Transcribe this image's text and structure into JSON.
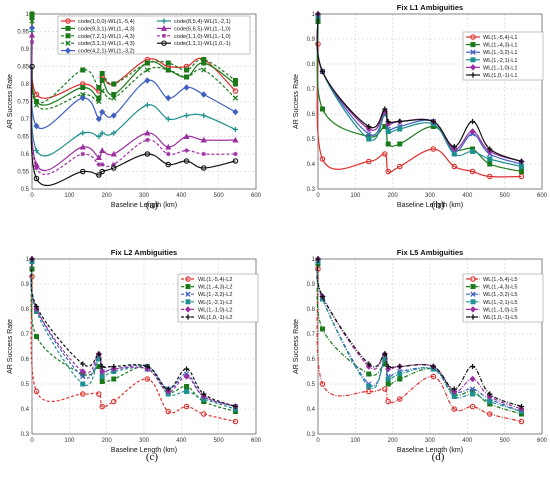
{
  "chart_data": [
    {
      "panel": "(a)",
      "type": "line",
      "title": "",
      "xlabel": "Baseline Length (km)",
      "ylabel": "AR Success Rate",
      "xlim": [
        0,
        600
      ],
      "ylim": [
        0.5,
        1.0
      ],
      "xticks": [
        "0",
        "100",
        "200",
        "300",
        "400",
        "500",
        "600"
      ],
      "yticks": [
        "0.5",
        "0.55",
        "0.6",
        "0.65",
        "0.7",
        "0.75",
        "0.8",
        "0.85",
        "0.9",
        "0.95",
        "1"
      ],
      "grid": true,
      "legend_position": "top",
      "legend_columns": 2,
      "x": [
        0,
        12,
        136,
        179,
        188,
        219,
        309,
        365,
        414,
        460,
        545
      ],
      "series": [
        {
          "name": "code(1,0,0)-WL(1,-5,4)",
          "color": "#e03030",
          "dash": "solid",
          "marker": "circle",
          "values": [
            1.0,
            0.77,
            0.8,
            0.78,
            0.82,
            0.8,
            0.87,
            0.85,
            0.85,
            0.87,
            0.78
          ]
        },
        {
          "name": "code(9,3,1)-WL(1,-4,3)",
          "color": "#1a7a1a",
          "dash": "solid",
          "marker": "square",
          "values": [
            1.0,
            0.75,
            0.79,
            0.76,
            0.81,
            0.77,
            0.86,
            0.84,
            0.82,
            0.86,
            0.8
          ]
        },
        {
          "name": "code(7,2,1)-WL(1,-4,3)",
          "color": "#1a7a1a",
          "dash": "dashed",
          "marker": "square",
          "values": [
            0.99,
            0.75,
            0.84,
            0.79,
            0.83,
            0.8,
            0.86,
            0.86,
            0.84,
            0.87,
            0.81
          ]
        },
        {
          "name": "code(3,1,1)-WL(1,-4,3)",
          "color": "#1a7a1a",
          "dash": "dashed",
          "marker": "cross",
          "values": [
            0.98,
            0.74,
            0.77,
            0.75,
            0.78,
            0.76,
            0.84,
            0.84,
            0.82,
            0.84,
            0.76
          ]
        },
        {
          "name": "code(4,2,1)-WL(1,-3,2)",
          "color": "#4060c0",
          "dash": "solid",
          "marker": "diamond",
          "values": [
            0.96,
            0.68,
            0.76,
            0.7,
            0.72,
            0.71,
            0.81,
            0.76,
            0.79,
            0.77,
            0.72
          ]
        },
        {
          "name": "code(8,5,4)-WL(1,-2,1)",
          "color": "#1f9090",
          "dash": "solid",
          "marker": "plus",
          "values": [
            0.95,
            0.61,
            0.66,
            0.65,
            0.66,
            0.66,
            0.74,
            0.7,
            0.71,
            0.71,
            0.67
          ]
        },
        {
          "name": "code(6,6,5)-WL(1,-1,0)",
          "color": "#9c2fa0",
          "dash": "solid",
          "marker": "triangle",
          "values": [
            0.94,
            0.57,
            0.62,
            0.59,
            0.61,
            0.6,
            0.66,
            0.62,
            0.65,
            0.64,
            0.64
          ]
        },
        {
          "name": "code(1,1,0)-WL(1,-1,0)",
          "color": "#9c2fa0",
          "dash": "dashed",
          "marker": "star",
          "values": [
            0.92,
            0.56,
            0.6,
            0.57,
            0.57,
            0.57,
            0.64,
            0.6,
            0.61,
            0.6,
            0.6
          ]
        },
        {
          "name": "code(1,1,1)-WL(1,0,-1)",
          "color": "#111111",
          "dash": "solid",
          "marker": "circle",
          "values": [
            0.85,
            0.53,
            0.55,
            0.54,
            0.55,
            0.56,
            0.6,
            0.57,
            0.58,
            0.56,
            0.58
          ]
        }
      ]
    },
    {
      "panel": "(b)",
      "type": "line",
      "title": "Fix L1 Ambiguities",
      "xlabel": "Baseline Length (km)",
      "ylabel": "AR Success Rate",
      "xlim": [
        0,
        600
      ],
      "ylim": [
        0.3,
        1.0
      ],
      "xticks": [
        "0",
        "100",
        "200",
        "300",
        "400",
        "500",
        "600"
      ],
      "yticks": [
        "0.3",
        "0.4",
        "0.5",
        "0.6",
        "0.7",
        "0.8",
        "0.9",
        "1"
      ],
      "grid": true,
      "legend_position": "top-right",
      "x": [
        0,
        12,
        136,
        179,
        188,
        219,
        309,
        365,
        414,
        460,
        545
      ],
      "series": [
        {
          "name": "WL(1,-5,4)-L1",
          "color": "#e03030",
          "dash": "solid",
          "marker": "circle",
          "values": [
            0.88,
            0.42,
            0.41,
            0.44,
            0.37,
            0.39,
            0.46,
            0.39,
            0.37,
            0.35,
            0.35
          ]
        },
        {
          "name": "WL(1,-4,3)-L1",
          "color": "#1a7a1a",
          "dash": "solid",
          "marker": "square",
          "values": [
            0.97,
            0.62,
            0.51,
            0.55,
            0.48,
            0.48,
            0.55,
            0.46,
            0.46,
            0.4,
            0.37
          ]
        },
        {
          "name": "WL(1,-3,2)-L1",
          "color": "#4060c0",
          "dash": "solid",
          "marker": "cross",
          "values": [
            0.99,
            0.77,
            0.52,
            0.6,
            0.54,
            0.55,
            0.57,
            0.45,
            0.52,
            0.44,
            0.4
          ]
        },
        {
          "name": "WL(1,-2,1)-L1",
          "color": "#1f9090",
          "dash": "solid",
          "marker": "square",
          "values": [
            0.99,
            0.77,
            0.5,
            0.6,
            0.53,
            0.54,
            0.56,
            0.44,
            0.45,
            0.42,
            0.39
          ]
        },
        {
          "name": "WL(1,-1,0)-L1",
          "color": "#9c2fa0",
          "dash": "solid",
          "marker": "diamond",
          "values": [
            1.0,
            0.77,
            0.54,
            0.61,
            0.56,
            0.57,
            0.57,
            0.46,
            0.53,
            0.45,
            0.41
          ]
        },
        {
          "name": "WL(1,0,-1)-L1",
          "color": "#111111",
          "dash": "solid",
          "marker": "plus",
          "values": [
            1.0,
            0.77,
            0.55,
            0.62,
            0.57,
            0.57,
            0.57,
            0.47,
            0.57,
            0.46,
            0.41
          ]
        }
      ]
    },
    {
      "panel": "(c)",
      "type": "line",
      "title": "Fix L2 Ambiguities",
      "xlabel": "Baseline Length (km)",
      "ylabel": "AR Success Rate",
      "xlim": [
        0,
        600
      ],
      "ylim": [
        0.3,
        1.0
      ],
      "xticks": [
        "0",
        "100",
        "200",
        "300",
        "400",
        "500",
        "600"
      ],
      "yticks": [
        "0.3",
        "0.4",
        "0.5",
        "0.6",
        "0.7",
        "0.8",
        "0.9",
        "1"
      ],
      "grid": true,
      "legend_position": "top-right",
      "x": [
        0,
        12,
        136,
        179,
        188,
        219,
        309,
        365,
        414,
        460,
        545
      ],
      "series": [
        {
          "name": "WL(1,-5,4)-L2",
          "color": "#e03030",
          "dash": "dashed",
          "marker": "circle",
          "values": [
            0.93,
            0.47,
            0.46,
            0.46,
            0.41,
            0.43,
            0.52,
            0.39,
            0.41,
            0.38,
            0.35
          ]
        },
        {
          "name": "WL(1,-4,3)-L2",
          "color": "#1a7a1a",
          "dash": "dashed",
          "marker": "square",
          "values": [
            0.96,
            0.69,
            0.54,
            0.57,
            0.51,
            0.52,
            0.57,
            0.47,
            0.49,
            0.43,
            0.39
          ]
        },
        {
          "name": "WL(1,-3,2)-L2",
          "color": "#4060c0",
          "dash": "dashed",
          "marker": "cross",
          "values": [
            0.99,
            0.8,
            0.53,
            0.61,
            0.55,
            0.56,
            0.57,
            0.48,
            0.54,
            0.45,
            0.41
          ]
        },
        {
          "name": "WL(1,-2,1)-L2",
          "color": "#1f9090",
          "dash": "dashed",
          "marker": "square",
          "values": [
            0.99,
            0.79,
            0.5,
            0.6,
            0.53,
            0.55,
            0.56,
            0.46,
            0.47,
            0.44,
            0.4
          ]
        },
        {
          "name": "WL(1,-1,0)-L2",
          "color": "#9c2fa0",
          "dash": "dashed",
          "marker": "diamond",
          "values": [
            1.0,
            0.8,
            0.55,
            0.62,
            0.55,
            0.56,
            0.56,
            0.47,
            0.53,
            0.45,
            0.41
          ]
        },
        {
          "name": "WL(1,0,-1)-L2",
          "color": "#111111",
          "dash": "dashed",
          "marker": "plus",
          "values": [
            1.0,
            0.81,
            0.58,
            0.62,
            0.57,
            0.57,
            0.57,
            0.48,
            0.56,
            0.46,
            0.41
          ]
        }
      ]
    },
    {
      "panel": "(d)",
      "type": "line",
      "title": "Fix L5 Ambiguities",
      "xlabel": "Baseline Length (km)",
      "ylabel": "AR Success Rate",
      "xlim": [
        0,
        600
      ],
      "ylim": [
        0.3,
        1.0
      ],
      "xticks": [
        "0",
        "100",
        "200",
        "300",
        "400",
        "500",
        "600"
      ],
      "yticks": [
        "0.3",
        "0.4",
        "0.5",
        "0.6",
        "0.7",
        "0.8",
        "0.9",
        "1"
      ],
      "grid": true,
      "legend_position": "top-right",
      "x": [
        0,
        12,
        136,
        179,
        188,
        219,
        309,
        365,
        414,
        460,
        545
      ],
      "series": [
        {
          "name": "WL(1,-5,4)-L5",
          "color": "#e03030",
          "dash": "dashdot",
          "marker": "circle",
          "values": [
            0.96,
            0.5,
            0.47,
            0.48,
            0.43,
            0.44,
            0.53,
            0.4,
            0.41,
            0.38,
            0.35
          ]
        },
        {
          "name": "WL(1,-4,3)-L5",
          "color": "#1a7a1a",
          "dash": "dashdot",
          "marker": "square",
          "values": [
            0.98,
            0.72,
            0.54,
            0.58,
            0.5,
            0.52,
            0.56,
            0.46,
            0.47,
            0.42,
            0.38
          ]
        },
        {
          "name": "WL(1,-3,2)-L5",
          "color": "#4060c0",
          "dash": "dashdot",
          "marker": "cross",
          "values": [
            0.99,
            0.84,
            0.5,
            0.6,
            0.53,
            0.55,
            0.56,
            0.47,
            0.48,
            0.44,
            0.39
          ]
        },
        {
          "name": "WL(1,-2,1)-L5",
          "color": "#1f9090",
          "dash": "dashdot",
          "marker": "square",
          "values": [
            0.99,
            0.84,
            0.49,
            0.6,
            0.52,
            0.54,
            0.56,
            0.45,
            0.46,
            0.43,
            0.39
          ]
        },
        {
          "name": "WL(1,-1,0)-L5",
          "color": "#9c2fa0",
          "dash": "dashdot",
          "marker": "diamond",
          "values": [
            1.0,
            0.85,
            0.57,
            0.62,
            0.56,
            0.57,
            0.57,
            0.47,
            0.52,
            0.45,
            0.4
          ]
        },
        {
          "name": "WL(1,0,-1)-L5",
          "color": "#111111",
          "dash": "dashdot",
          "marker": "plus",
          "values": [
            1.0,
            0.85,
            0.58,
            0.62,
            0.57,
            0.57,
            0.57,
            0.48,
            0.57,
            0.46,
            0.41
          ]
        }
      ]
    }
  ]
}
